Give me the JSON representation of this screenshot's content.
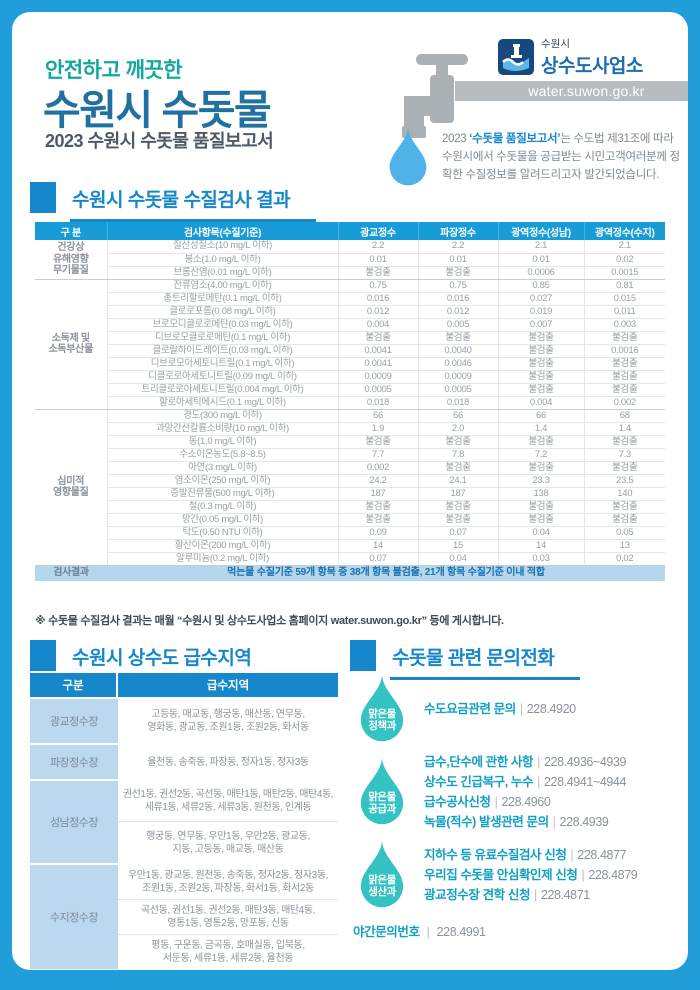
{
  "colors": {
    "frame": "#1f9ed9",
    "accent": "#1787cc",
    "table_header": "#189cd8",
    "tagline_teal": "#13a79f",
    "title_blue": "#20719f",
    "droplet_blue": "#4fb3e8",
    "drop_teal": "#35c2c3",
    "result_row_bg": "#b3d7ec",
    "supply_label_bg": "#bcd8ee",
    "contact_label": "#129fc4",
    "band_gray": "#b6bcbf",
    "faucet_gray": "#a9b1b5",
    "logo_navy": "#17497e"
  },
  "header": {
    "tagline": "안전하고 깨끗한",
    "title": "수원시 수돗물",
    "subtitle": "2023 수원시 수돗물 품질보고서",
    "org_city": "수원시",
    "org_name": "상수도사업소",
    "website": "water.suwon.go.kr",
    "intro": {
      "pre": "2023 ",
      "highlight": "‘수돗물 품질보고서’",
      "post": "는 수도법 제31조에 따라",
      "line2": "수원시에서 수돗물을 공급받는 시민고객여러분께",
      "line3": "정확한 수질정보를 알려드리고자 발간되었습니다."
    }
  },
  "quality_section": {
    "title": "수원시 수돗물 수질검사 결과",
    "table": {
      "headers": [
        "구  분",
        "검사항목(수질기준)",
        "광교정수",
        "파장정수",
        "광역정수(성남)",
        "광역정수(수지)"
      ],
      "groups": [
        {
          "name": [
            "건강상",
            "유해영향",
            "무기물질"
          ],
          "rows": [
            [
              "질산성질소(10 mg/L 이하)",
              "2.2",
              "2.2",
              "2.1",
              "2.1"
            ],
            [
              "붕소(1.0 mg/L 이하)",
              "0.01",
              "0.01",
              "0.01",
              "0.02"
            ],
            [
              "브롬산염(0.01 mg/L 이하)",
              "불검출",
              "불검출",
              "0.0006",
              "0.0015"
            ]
          ]
        },
        {
          "name": [
            "소독제 및",
            "소독부산물"
          ],
          "rows": [
            [
              "잔류염소(4.00 mg/L 이하)",
              "0.75",
              "0.75",
              "0.85",
              "0.81"
            ],
            [
              "총트리할로메탄(0.1 mg/L 이하)",
              "0.016",
              "0.016",
              "0.027",
              "0.015"
            ],
            [
              "클로로포름(0.08 mg/L 이하)",
              "0.012",
              "0.012",
              "0.019",
              "0.011"
            ],
            [
              "브로모디클로로메탄(0.03 mg/L 이하)",
              "0.004",
              "0.005",
              "0.007",
              "0.003"
            ],
            [
              "디브로모클로로메탄(0.1 mg/L 이하)",
              "불검출",
              "불검출",
              "불검출",
              "불검출"
            ],
            [
              "클로랄하이드레이트(0.03 mg/L 이하)",
              "0.0041",
              "0.0040",
              "불검출",
              "0.0016"
            ],
            [
              "디브로모아세토니트릴(0.1 mg/L 이하)",
              "0.0041",
              "0.0046",
              "불검출",
              "불검출"
            ],
            [
              "디클로로아세토니트릴(0.09 mg/L 이하)",
              "0.0009",
              "0.0009",
              "불검출",
              "불검출"
            ],
            [
              "트리클로로아세토니트릴(0.004 mg/L 이하)",
              "0.0005",
              "0.0005",
              "불검출",
              "불검출"
            ],
            [
              "할로아세틱에시드(0.1 mg/L 이하)",
              "0.018",
              "0.018",
              "0.004",
              "0.002"
            ]
          ]
        },
        {
          "name": [
            "심미적",
            "영향물질"
          ],
          "rows": [
            [
              "경도(300 mg/L 이하)",
              "66",
              "66",
              "66",
              "68"
            ],
            [
              "과망간산칼륨소비량(10 mg/L 이하)",
              "1.9",
              "2.0",
              "1.4",
              "1.4"
            ],
            [
              "동(1.0 mg/L 이하)",
              "불검출",
              "불검출",
              "불검출",
              "불검출"
            ],
            [
              "수소이온농도(5.8~8.5)",
              "7.7",
              "7.8",
              "7.2",
              "7.3"
            ],
            [
              "아연(3 mg/L 이하)",
              "0.002",
              "불검출",
              "불검출",
              "불검출"
            ],
            [
              "염소이온(250 mg/L 이하)",
              "24.2",
              "24.1",
              "23.3",
              "23.5"
            ],
            [
              "증발잔류물(500 mg/L 이하)",
              "187",
              "187",
              "138",
              "140"
            ],
            [
              "철(0.3 mg/L 이하)",
              "불검출",
              "불검출",
              "불검출",
              "불검출"
            ],
            [
              "망간(0.05 mg/L 이하)",
              "불검출",
              "불검출",
              "불검출",
              "불검출"
            ],
            [
              "탁도(0.50 NTU 이하)",
              "0.09",
              "0.07",
              "0.04",
              "0.05"
            ],
            [
              "황산이온(200 mg/L 이하)",
              "14",
              "15",
              "14",
              "13"
            ],
            [
              "알루미늄(0.2 mg/L 이하)",
              "0.07",
              "0.04",
              "0.03",
              "0.02"
            ]
          ]
        }
      ],
      "result_label": "검사결과",
      "result_text": "먹는물 수질기준 59개 항목 중 38개 항목 불검출, 21개 항목 수질기준 이내 적합"
    },
    "note": "※ 수돗물 수질검사 결과는 매월 “수원시 및 상수도사업소 홈페이지 water.suwon.go.kr” 등에 게시합니다."
  },
  "supply_section": {
    "title": "수원시 상수도 급수지역",
    "headers": [
      "구분",
      "급수지역"
    ],
    "rows": [
      {
        "label": "광교정수장",
        "areas": [
          [
            "고등동, 매교동, 행궁동, 매산동, 연무동,",
            "영화동, 광교동, 조원1동, 조원2동, 화서동"
          ]
        ]
      },
      {
        "label": "파장정수장",
        "areas": [
          [
            "율천동, 송죽동, 파장동, 정자1동, 정자3동"
          ]
        ]
      },
      {
        "label": "성남정수장",
        "areas": [
          [
            "권선1동, 권선2동, 곡선동, 매탄1동, 매탄2동, 매탄4동,",
            "세류1동, 세류2동, 세류3동, 원천동, 인계동"
          ],
          [
            "행궁동, 연무동, 우만1동, 우만2동, 광교동,",
            "지동, 고등동, 매교동, 매산동"
          ]
        ]
      },
      {
        "label": "수지정수장",
        "areas": [
          [
            "우만1동, 광교동, 원천동, 송죽동, 정자2동, 정자3동,",
            "조원1동, 조원2동, 파장동, 화서1동, 화서2동"
          ],
          [
            "곡선동, 권선1동, 권선2동, 매탄3동, 매탄4동,",
            "영통1동, 영통2동, 망포동, 신동"
          ],
          [
            "평동, 구운동, 금곡동, 호매실동, 입북동,",
            "서둔동, 세류1동, 세류2동, 율천동"
          ]
        ]
      }
    ]
  },
  "contact_section": {
    "title": "수돗물 관련 문의전화",
    "groups": [
      {
        "dept": [
          "맑은물",
          "정책과"
        ],
        "items": [
          [
            "수도요금관련 문의",
            "228.4920"
          ]
        ]
      },
      {
        "dept": [
          "맑은물",
          "공급과"
        ],
        "items": [
          [
            "급수,단수에 관한 사항",
            "228.4936~4939"
          ],
          [
            "상수도 긴급복구, 누수",
            "228.4941~4944"
          ],
          [
            "급수공사신청",
            "228.4960"
          ],
          [
            "녹물(적수) 발생관련 문의",
            "228.4939"
          ]
        ]
      },
      {
        "dept": [
          "맑은물",
          "생산과"
        ],
        "items": [
          [
            "지하수 등 유료수질검사 신청",
            "228.4877"
          ],
          [
            "우리집 수돗물 안심확인제 신청",
            "228.4879"
          ],
          [
            "광교정수장 견학 신청",
            "228.4871"
          ]
        ]
      }
    ],
    "night": {
      "label": "야간문의번호",
      "phone": "228.4991"
    }
  }
}
